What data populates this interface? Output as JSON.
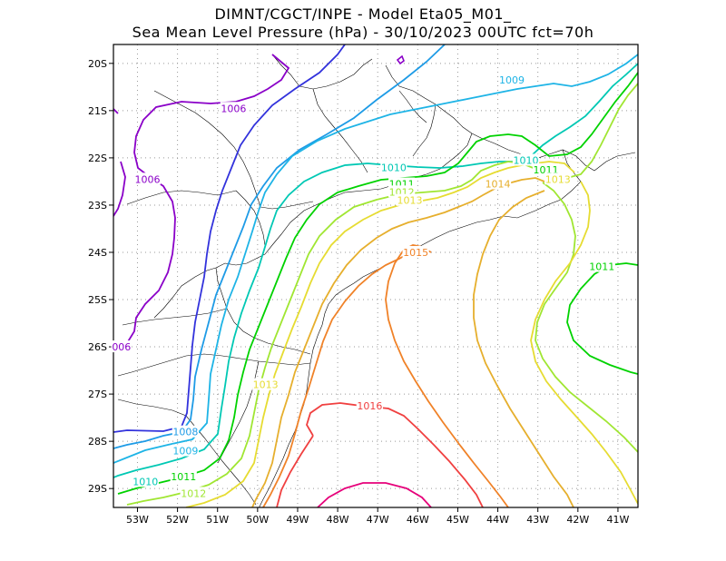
{
  "title_line1": "DIMNT/CGCT/INPE  -   Model Eta05_M01_",
  "title_line2": "Sea Mean Level Pressure (hPa) - 30/10/2023 00UTC fct=70h",
  "lon_ticks": [
    "53W",
    "52W",
    "51W",
    "50W",
    "49W",
    "48W",
    "47W",
    "46W",
    "45W",
    "44W",
    "43W",
    "42W",
    "41W"
  ],
  "lat_ticks": [
    "20S",
    "21S",
    "22S",
    "23S",
    "24S",
    "25S",
    "26S",
    "27S",
    "28S",
    "29S"
  ],
  "lon_range": [
    -53.6,
    -40.5
  ],
  "lat_range": [
    -29.4,
    -19.6
  ],
  "grid": true,
  "contour_colors": {
    "1006": "#8a00c8",
    "1007": "#3232dc",
    "1008": "#1e9be6",
    "1009": "#1eb4e6",
    "1010": "#00c8b4",
    "1011": "#00d200",
    "1012": "#a0e632",
    "1013": "#e6dc32",
    "1014": "#e6af2d",
    "1015": "#f08228",
    "1016": "#f04040",
    "1017": "#e6007a"
  },
  "contour_labels": [
    {
      "text": "1006",
      "lon": -50.6,
      "lat": -20.95
    },
    {
      "text": "1006",
      "lon": -52.75,
      "lat": -22.45
    },
    {
      "text": "006",
      "lon": -53.4,
      "lat": -26.0
    },
    {
      "text": "1009",
      "lon": -43.65,
      "lat": -20.35
    },
    {
      "text": "1010",
      "lon": -46.6,
      "lat": -22.2
    },
    {
      "text": "1010",
      "lon": -43.3,
      "lat": -22.05
    },
    {
      "text": "1011",
      "lon": -46.4,
      "lat": -22.55
    },
    {
      "text": "1011",
      "lon": -42.8,
      "lat": -22.25
    },
    {
      "text": "1012",
      "lon": -46.4,
      "lat": -22.72
    },
    {
      "text": "1013",
      "lon": -46.2,
      "lat": -22.9
    },
    {
      "text": "1013",
      "lon": -42.5,
      "lat": -22.45
    },
    {
      "text": "1014",
      "lon": -44.0,
      "lat": -22.55
    },
    {
      "text": "1015",
      "lon": -46.05,
      "lat": -24.0
    },
    {
      "text": "1011",
      "lon": -41.4,
      "lat": -24.3
    },
    {
      "text": "1013",
      "lon": -49.8,
      "lat": -26.8
    },
    {
      "text": "1016",
      "lon": -47.2,
      "lat": -27.25
    },
    {
      "text": "1008",
      "lon": -51.8,
      "lat": -27.8
    },
    {
      "text": "1009",
      "lon": -51.8,
      "lat": -28.2
    },
    {
      "text": "1010",
      "lon": -52.8,
      "lat": -28.85
    },
    {
      "text": "1011",
      "lon": -51.85,
      "lat": -28.75
    },
    {
      "text": "1012",
      "lon": -51.6,
      "lat": -29.1
    }
  ]
}
